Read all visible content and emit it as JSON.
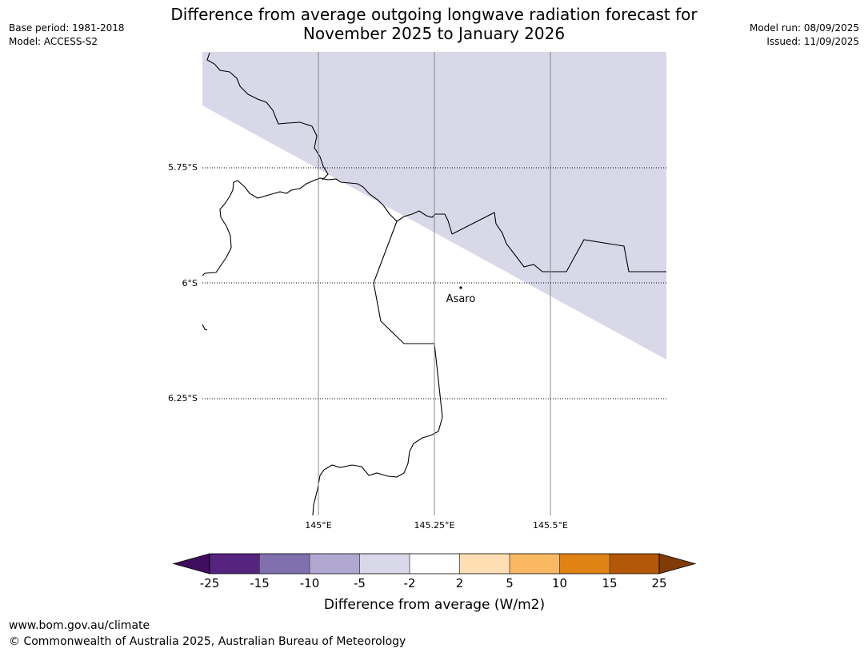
{
  "title_line1": "Difference from average outgoing longwave radiation forecast for",
  "title_line2": "November 2025 to January 2026",
  "meta_left": {
    "base_period": "Base period: 1981-2018",
    "model": "Model: ACCESS-S2"
  },
  "meta_right": {
    "model_run": "Model run: 08/09/2025",
    "issued": "Issued: 11/09/2025"
  },
  "map": {
    "lat_labels": [
      "5.75°S",
      "6°S",
      "6.25°S"
    ],
    "lon_labels": [
      "145°E",
      "145.25°E",
      "145.5°E"
    ],
    "place_label": "Asaro",
    "shaded_category": "-5 to -2"
  },
  "colorbar": {
    "label": "Difference from average (W/m2)",
    "ticks": [
      "-25",
      "-15",
      "-10",
      "-5",
      "-2",
      "2",
      "5",
      "10",
      "15",
      "25"
    ],
    "colors": [
      "#3f0e5e",
      "#56237f",
      "#8070ad",
      "#b1a8d1",
      "#d8d8e9",
      "#ffffff",
      "#fddfb3",
      "#fbb863",
      "#e08314",
      "#b35708",
      "#7f3b08"
    ]
  },
  "footer": {
    "url": "www.bom.gov.au/climate",
    "copyright": "© Commonwealth of Australia 2025, Australian Bureau of Meteorology"
  }
}
